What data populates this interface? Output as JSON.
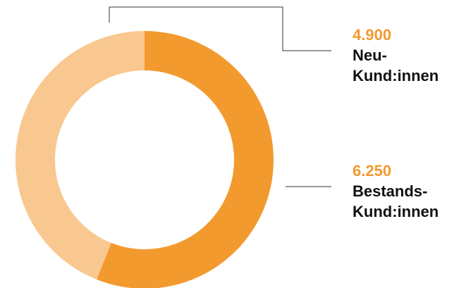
{
  "chart_data": {
    "type": "pie",
    "donut": true,
    "categories": [
      "Neu-Kund:innen",
      "Bestands-Kund:innen"
    ],
    "values": [
      4900,
      6250
    ],
    "value_labels": [
      "4.900",
      "6.250"
    ],
    "colors": [
      "#f9c890",
      "#f29a2e"
    ]
  }
}
